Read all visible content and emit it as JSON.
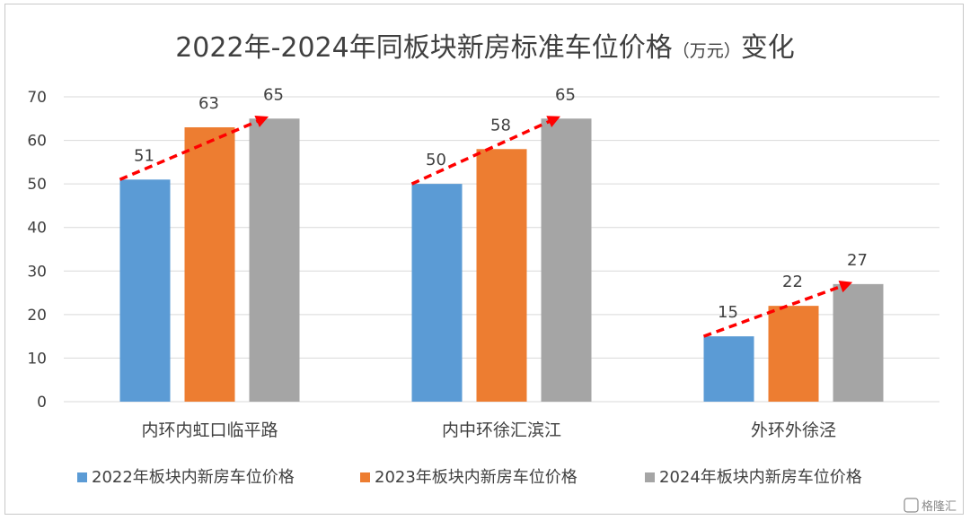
{
  "chart_data": {
    "type": "bar",
    "title": "2022年-2024年同板块新房标准车位价格",
    "title_unit": "（万元）",
    "title_tail": "变化",
    "categories": [
      "内环内虹口临平路",
      "内中环徐汇滨江",
      "外环外徐泾"
    ],
    "series": [
      {
        "name": "2022年板块内新房车位价格",
        "color": "#5b9bd5",
        "values": [
          51,
          50,
          15
        ]
      },
      {
        "name": "2023年板块内新房车位价格",
        "color": "#ed7d31",
        "values": [
          63,
          58,
          22
        ]
      },
      {
        "name": "2024年板块内新房车位价格",
        "color": "#a5a5a5",
        "values": [
          65,
          65,
          27
        ]
      }
    ],
    "ylim": [
      0,
      70
    ],
    "yticks": [
      0,
      10,
      20,
      30,
      40,
      50,
      60,
      70
    ],
    "grid": true,
    "legend_position": "bottom",
    "annotations": "red dashed arrow from 2022 bar to 2024 bar in each group",
    "arrow_color": "#ff0000"
  },
  "watermark": "格隆汇"
}
